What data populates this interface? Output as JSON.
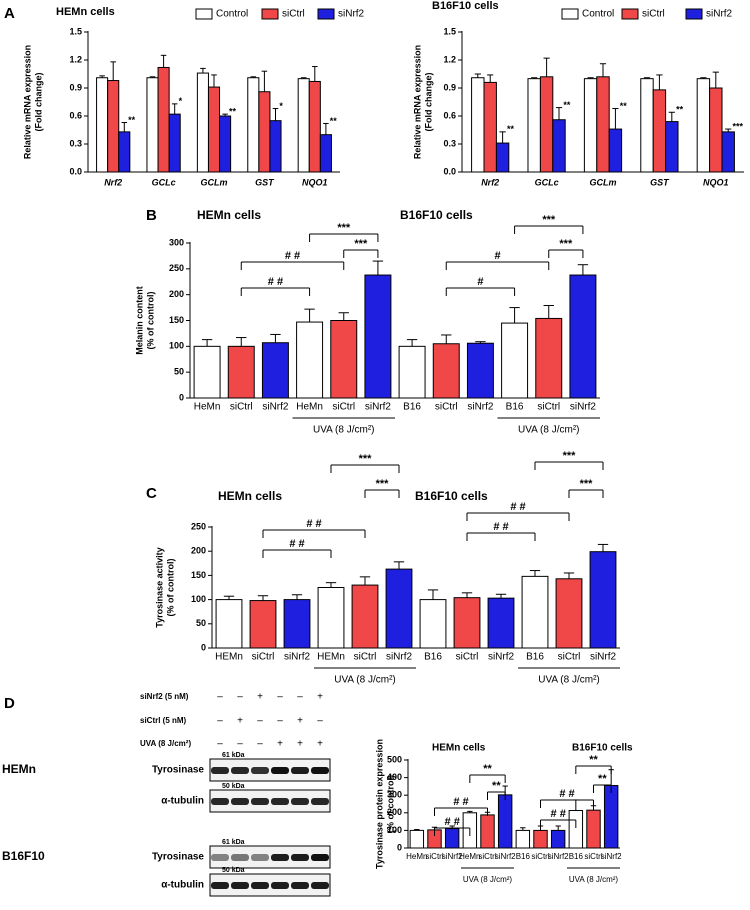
{
  "panel_labels": [
    "A",
    "B",
    "C",
    "D"
  ],
  "chart_data": [
    {
      "type": "bar",
      "title": "HEMn cells",
      "ylabel": [
        "Relative mRNA expression",
        "(Fold change)"
      ],
      "categories": [
        "Nrf2",
        "GCLc",
        "GCLm",
        "GST",
        "NQO1"
      ],
      "ylim": [
        0,
        1.5
      ],
      "yticks": [
        {
          "value": 0,
          "label": "0.0"
        },
        0.3,
        0.6,
        0.9,
        1.2,
        1.5
      ],
      "series": [
        {
          "name": "Control",
          "color": "#ffffff",
          "values": [
            1.01,
            1.01,
            1.06,
            1.01,
            1.0
          ],
          "errors": [
            0.02,
            0.01,
            0.05,
            0.01,
            0.01
          ]
        },
        {
          "name": "siCtrl",
          "color": "#f04848",
          "values": [
            0.98,
            1.12,
            0.91,
            0.86,
            0.97
          ],
          "errors": [
            0.2,
            0.13,
            0.13,
            0.22,
            0.16
          ]
        },
        {
          "name": "siNrf2",
          "color": "#1f1fe0",
          "values": [
            0.43,
            0.62,
            0.6,
            0.55,
            0.4
          ],
          "errors": [
            0.1,
            0.11,
            0.02,
            0.13,
            0.12
          ],
          "significance": [
            "**",
            "*",
            "**",
            "*",
            "**"
          ]
        }
      ]
    },
    {
      "type": "bar",
      "title": "B16F10 cells",
      "ylabel": [
        "Relative mRNA expression",
        "(Fold change)"
      ],
      "categories": [
        "Nrf2",
        "GCLc",
        "GCLm",
        "GST",
        "NQO1"
      ],
      "ylim": [
        0,
        1.5
      ],
      "yticks": [
        {
          "value": 0,
          "label": "0.0"
        },
        0.3,
        0.6,
        0.9,
        1.2,
        1.5
      ],
      "series": [
        {
          "name": "Control",
          "color": "#ffffff",
          "values": [
            1.01,
            1.0,
            1.0,
            1.0,
            1.0
          ],
          "errors": [
            0.04,
            0.01,
            0.01,
            0.01,
            0.01
          ]
        },
        {
          "name": "siCtrl",
          "color": "#f04848",
          "values": [
            0.96,
            1.02,
            1.02,
            0.88,
            0.9
          ],
          "errors": [
            0.08,
            0.2,
            0.14,
            0.16,
            0.17
          ]
        },
        {
          "name": "siNrf2",
          "color": "#1f1fe0",
          "values": [
            0.31,
            0.56,
            0.46,
            0.54,
            0.43
          ],
          "errors": [
            0.12,
            0.13,
            0.22,
            0.1,
            0.03
          ],
          "significance": [
            "**",
            "**",
            "**",
            "**",
            "***"
          ]
        }
      ]
    },
    {
      "type": "bar",
      "annotations": [
        "HEMn cells",
        "B16F10 cells"
      ],
      "ylabel": [
        "Melanin content",
        "(% of control)"
      ],
      "categories": [
        "HeMn",
        "siCtrl",
        "siNrf2",
        "HeMn",
        "siCtrl",
        "siNrf2",
        "B16",
        "siCtrl",
        "siNrf2",
        "B16",
        "siCtrl",
        "siNrf2"
      ],
      "values": [
        100,
        100,
        107,
        147,
        150,
        238,
        100,
        105,
        106,
        145,
        154,
        238
      ],
      "errors": [
        13,
        17,
        16,
        25,
        15,
        27,
        13,
        17,
        3,
        30,
        25,
        20
      ],
      "colors": [
        "#ffffff",
        "#f04848",
        "#1f1fe0",
        "#ffffff",
        "#f04848",
        "#1f1fe0",
        "#ffffff",
        "#f04848",
        "#1f1fe0",
        "#ffffff",
        "#f04848",
        "#1f1fe0"
      ],
      "ylim": [
        0,
        300
      ],
      "yticks": [
        0,
        50,
        100,
        150,
        200,
        250,
        300
      ],
      "groups": [
        {
          "label": "UVA (8 J/cm²)",
          "bars": [
            3,
            5
          ]
        },
        {
          "label": "UVA (8 J/cm²)",
          "bars": [
            9,
            11
          ]
        }
      ],
      "brackets": [
        {
          "text": "# #",
          "bars": [
            1,
            4
          ]
        },
        {
          "text": "# #",
          "bars": [
            1,
            3
          ]
        },
        {
          "text": "***",
          "bars": [
            3,
            5
          ]
        },
        {
          "text": "***",
          "bars": [
            4,
            5
          ]
        },
        {
          "text": "#",
          "bars": [
            7,
            10
          ]
        },
        {
          "text": "#",
          "bars": [
            7,
            9
          ]
        },
        {
          "text": "***",
          "bars": [
            9,
            11
          ]
        },
        {
          "text": "***",
          "bars": [
            10,
            11
          ]
        }
      ]
    },
    {
      "type": "bar",
      "annotations": [
        "HEMn cells",
        "B16F10 cells"
      ],
      "ylabel": [
        "Tyrosinase activity",
        "(% of control)"
      ],
      "categories": [
        "HEMn",
        "siCtrl",
        "siNrf2",
        "HEMn",
        "siCtrl",
        "siNrf2",
        "B16",
        "siCtrl",
        "siNrf2",
        "B16",
        "siCtrl",
        "siNrf2"
      ],
      "values": [
        100,
        98,
        100,
        125,
        130,
        163,
        100,
        104,
        103,
        148,
        143,
        199
      ],
      "errors": [
        7,
        10,
        10,
        10,
        17,
        15,
        20,
        10,
        8,
        12,
        12,
        15
      ],
      "colors": [
        "#ffffff",
        "#f04848",
        "#1f1fe0",
        "#ffffff",
        "#f04848",
        "#1f1fe0",
        "#ffffff",
        "#f04848",
        "#1f1fe0",
        "#ffffff",
        "#f04848",
        "#1f1fe0"
      ],
      "ylim": [
        0,
        250
      ],
      "yticks": [
        0,
        50,
        100,
        150,
        200,
        250
      ],
      "groups": [
        {
          "label": "UVA (8 J/cm²)",
          "bars": [
            3,
            5
          ]
        },
        {
          "label": "UVA (8 J/cm²)",
          "bars": [
            9,
            11
          ]
        }
      ],
      "brackets": [
        {
          "text": "# #",
          "bars": [
            1,
            4
          ]
        },
        {
          "text": "# #",
          "bars": [
            1,
            3
          ]
        },
        {
          "text": "***",
          "bars": [
            3,
            5
          ]
        },
        {
          "text": "***",
          "bars": [
            4,
            5
          ]
        },
        {
          "text": "# #",
          "bars": [
            7,
            10
          ]
        },
        {
          "text": "# #",
          "bars": [
            7,
            9
          ]
        },
        {
          "text": "***",
          "bars": [
            9,
            11
          ]
        },
        {
          "text": "***",
          "bars": [
            10,
            11
          ]
        }
      ]
    },
    {
      "type": "bar",
      "annotations": [
        "HEMn cells",
        "B16F10 cells"
      ],
      "ylabel": [
        "Tyrosinase protein expression",
        "(% of control)"
      ],
      "categories": [
        "HeMn",
        "siCtrl",
        "siNrf2",
        "HeMn",
        "siCtrl",
        "siNrf2",
        "B16",
        "siCtrl",
        "siNrf2",
        "B16",
        "siCtrl",
        "siNrf2"
      ],
      "values": [
        100,
        103,
        110,
        200,
        188,
        302,
        100,
        100,
        100,
        213,
        215,
        355
      ],
      "errors": [
        5,
        15,
        15,
        8,
        15,
        50,
        15,
        25,
        25,
        60,
        25,
        90
      ],
      "colors": [
        "#ffffff",
        "#f04848",
        "#1f1fe0",
        "#ffffff",
        "#f04848",
        "#1f1fe0",
        "#ffffff",
        "#f04848",
        "#1f1fe0",
        "#ffffff",
        "#f04848",
        "#1f1fe0"
      ],
      "ylim": [
        0,
        500
      ],
      "yticks": [
        0,
        100,
        200,
        300,
        400,
        500
      ],
      "groups": [
        {
          "label": "UVA (8 J/cm²)",
          "bars": [
            3,
            5
          ]
        },
        {
          "label": "UVA (8 J/cm²)",
          "bars": [
            9,
            11
          ]
        }
      ],
      "brackets": [
        {
          "text": "# #",
          "bars": [
            1,
            4
          ]
        },
        {
          "text": "# #",
          "bars": [
            1,
            3
          ]
        },
        {
          "text": "**",
          "bars": [
            3,
            5
          ]
        },
        {
          "text": "**",
          "bars": [
            4,
            5
          ]
        },
        {
          "text": "# #",
          "bars": [
            7,
            10
          ]
        },
        {
          "text": "# #",
          "bars": [
            7,
            9
          ]
        },
        {
          "text": "**",
          "bars": [
            9,
            11
          ]
        },
        {
          "text": "**",
          "bars": [
            10,
            11
          ]
        }
      ]
    }
  ],
  "blot": {
    "conditions": [
      {
        "label": "siNrf2 (5 nM)",
        "signs": [
          "–",
          "–",
          "+",
          "–",
          "–",
          "+"
        ]
      },
      {
        "label": "siCtrl (5 nM)",
        "signs": [
          "–",
          "+",
          "–",
          "–",
          "+",
          "–"
        ]
      },
      {
        "label": "UVA (8 J/cm²)",
        "signs": [
          "–",
          "–",
          "–",
          "+",
          "+",
          "+"
        ]
      }
    ],
    "rows": [
      {
        "cell": "HEMn",
        "protein": "Tyrosinase",
        "kda": "61 kDa"
      },
      {
        "protein": "α-tubulin",
        "kda": "50 kDa"
      },
      {
        "cell": "B16F10",
        "protein": "Tyrosinase",
        "kda": "61 kDa"
      },
      {
        "protein": "α-tubulin",
        "kda": "50 kDa"
      }
    ]
  }
}
